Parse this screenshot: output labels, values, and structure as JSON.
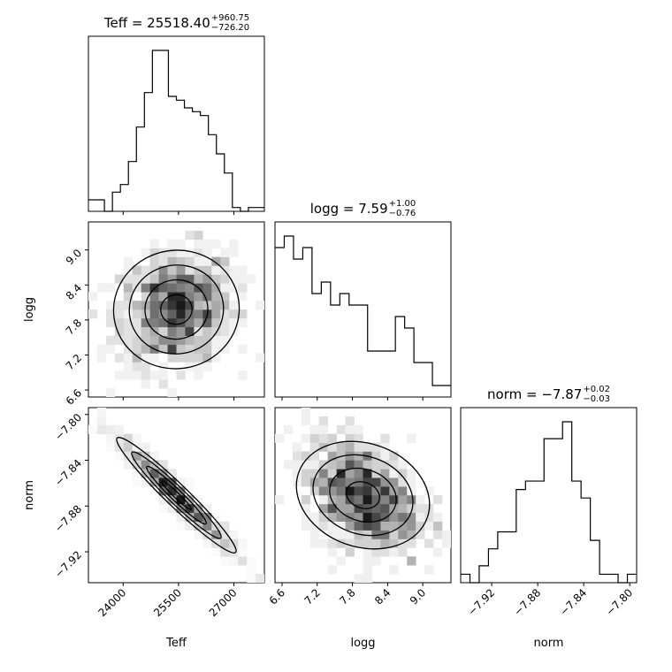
{
  "chart_data": {
    "type": "corner",
    "params": [
      "Teff",
      "logg",
      "norm"
    ],
    "titles": [
      {
        "param": "Teff",
        "prefix": "Teff = 25518.40",
        "plus": "+960.75",
        "minus": "−726.20"
      },
      {
        "param": "logg",
        "prefix": "logg = 7.59",
        "plus": "+1.00",
        "minus": "−0.76"
      },
      {
        "param": "norm",
        "prefix": "norm = −7.87",
        "plus": "+0.02",
        "minus": "−0.03"
      }
    ],
    "axis_labels": {
      "Teff": "Teff",
      "logg": "logg",
      "norm": "norm"
    },
    "ranges": {
      "Teff": [
        23058,
        27827
      ],
      "logg": [
        6.48,
        9.48
      ],
      "norm": [
        -7.947,
        -7.794
      ]
    },
    "ticks": {
      "Teff": {
        "values": [
          24000,
          25500,
          27000
        ],
        "labels": [
          "24000",
          "25500",
          "27000"
        ]
      },
      "logg": {
        "values": [
          6.6,
          7.2,
          7.8,
          8.4,
          9.0
        ],
        "labels": [
          "6.6",
          "7.2",
          "7.8",
          "8.4",
          "9.0"
        ]
      },
      "norm": {
        "values": [
          -7.92,
          -7.88,
          -7.84,
          -7.8
        ],
        "labels": [
          "−7.92",
          "−7.88",
          "−7.84",
          "−7.80"
        ]
      }
    },
    "histograms": [
      {
        "param": "Teff",
        "range": [
          23058,
          27827
        ],
        "counts": [
          3,
          3,
          0,
          5,
          7,
          13,
          22,
          31,
          42,
          42,
          30,
          29,
          27,
          26,
          25,
          20,
          15,
          10,
          1,
          0,
          1,
          1
        ]
      },
      {
        "param": "logg",
        "range": [
          6.48,
          9.48
        ],
        "counts": [
          13,
          14,
          12,
          13,
          9,
          10,
          8,
          9,
          8,
          8,
          4,
          4,
          4,
          7,
          6,
          3,
          3,
          1,
          1
        ]
      },
      {
        "param": "norm",
        "range": [
          -7.947,
          -7.794
        ],
        "counts": [
          1,
          0,
          2,
          4,
          6,
          6,
          11,
          12,
          12,
          17,
          17,
          19,
          12,
          10,
          5,
          1,
          1,
          0,
          1
        ]
      }
    ],
    "joint_density": [
      {
        "x": "Teff",
        "y": "logg",
        "corr": 0.15
      },
      {
        "x": "Teff",
        "y": "norm",
        "corr": -0.97
      },
      {
        "x": "logg",
        "y": "norm",
        "corr": -0.35
      }
    ],
    "grid": false
  }
}
